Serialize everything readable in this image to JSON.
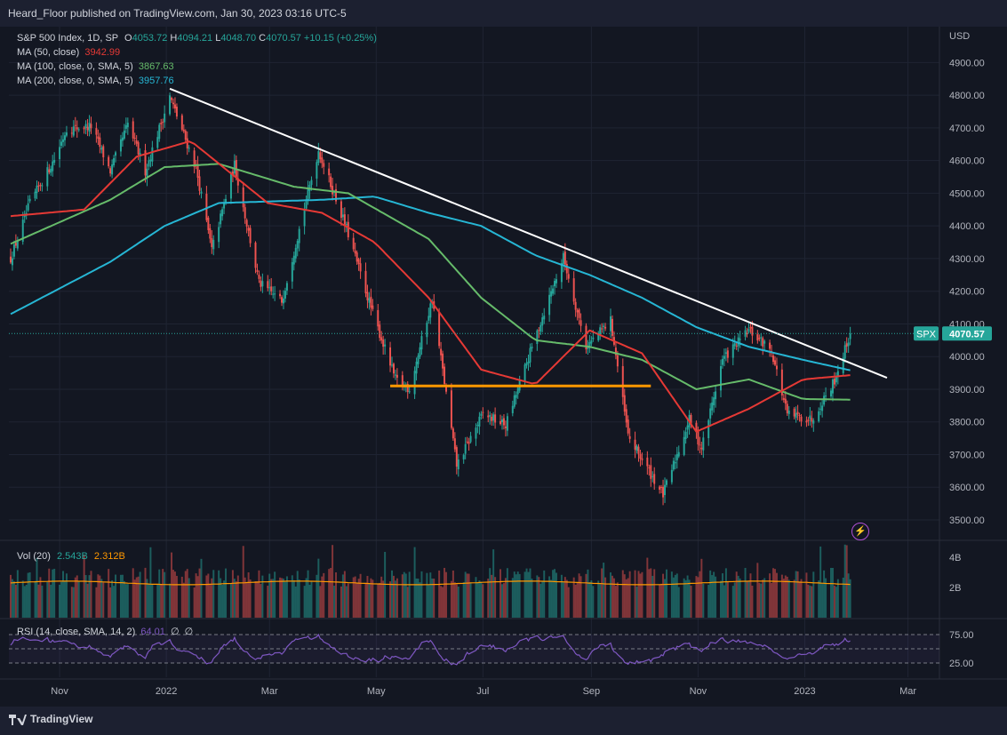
{
  "header": {
    "published": "Heard_Floor published on TradingView.com, Jan 30, 2023 03:16 UTC-5"
  },
  "footer": {
    "brand": "TradingView"
  },
  "legend": {
    "symbol": "S&P 500 Index, 1D, SP",
    "open_k": "O",
    "open": "4053.72",
    "high_k": "H",
    "high": "4094.21",
    "low_k": "L",
    "low": "4048.70",
    "close_k": "C",
    "close": "4070.57",
    "change": "+10.15 (+0.25%)",
    "ma50_label": "MA (50, close)",
    "ma50_value": "3942.99",
    "ma100_label": "MA (100, close, 0, SMA, 5)",
    "ma100_value": "3867.63",
    "ma200_label": "MA (200, close, 0, SMA, 5)",
    "ma200_value": "3957.76"
  },
  "volume_pane": {
    "label": "Vol (20)",
    "value1": "2.543B",
    "value2": "2.312B",
    "ticks": [
      "4B",
      "2B"
    ]
  },
  "rsi_pane": {
    "label": "RSI (14, close, SMA, 14, 2)",
    "value": "64.01",
    "value2": "∅",
    "value3": "∅",
    "ticks": [
      "75.00",
      "25.00"
    ]
  },
  "price_axis": {
    "currency": "USD",
    "last_symbol": "SPX",
    "last_price": "4070.57"
  },
  "colors": {
    "up": "#26a69a",
    "down": "#ef5350",
    "ma50": "#e53935",
    "ma100": "#66bb6a",
    "ma200": "#26b6d4",
    "trendline": "#ffffff",
    "support": "#ff9800",
    "rsi": "#7e57c2"
  },
  "chart_data": {
    "type": "candlestick",
    "y_ticks": [
      3500,
      3600,
      3700,
      3800,
      3900,
      4000,
      4100,
      4200,
      4300,
      4400,
      4500,
      4600,
      4700,
      4800,
      4900
    ],
    "y_tick_labels": [
      "3500.00",
      "3600.00",
      "3700.00",
      "3800.00",
      "3900.00",
      "4000.00",
      "4100.00",
      "4200.00",
      "4300.00",
      "4400.00",
      "4500.00",
      "4600.00",
      "4700.00",
      "4800.00",
      "4900.00"
    ],
    "ylim": [
      3440,
      5010
    ],
    "x_labels": [
      "Nov",
      "2022",
      "Mar",
      "May",
      "Jul",
      "Sep",
      "Nov",
      "2023",
      "Mar"
    ],
    "x_label_dates": [
      "2021-11-01",
      "2022-01-01",
      "2022-03-01",
      "2022-05-01",
      "2022-07-01",
      "2022-09-01",
      "2022-11-01",
      "2023-01-01",
      "2023-03-01"
    ],
    "xlim": [
      "2021-10-03",
      "2023-03-19"
    ],
    "close_anchors": [
      [
        "2021-10-04",
        4300
      ],
      [
        "2021-10-15",
        4470
      ],
      [
        "2021-10-29",
        4605
      ],
      [
        "2021-11-05",
        4697
      ],
      [
        "2021-11-19",
        4705
      ],
      [
        "2021-11-30",
        4567
      ],
      [
        "2021-12-10",
        4712
      ],
      [
        "2021-12-20",
        4568
      ],
      [
        "2022-01-03",
        4796
      ],
      [
        "2022-01-18",
        4577
      ],
      [
        "2022-01-27",
        4326
      ],
      [
        "2022-02-09",
        4587
      ],
      [
        "2022-02-23",
        4225
      ],
      [
        "2022-03-08",
        4170
      ],
      [
        "2022-03-29",
        4631
      ],
      [
        "2022-04-14",
        4392
      ],
      [
        "2022-04-29",
        4132
      ],
      [
        "2022-05-12",
        3930
      ],
      [
        "2022-05-20",
        3901
      ],
      [
        "2022-06-02",
        4176
      ],
      [
        "2022-06-16",
        3667
      ],
      [
        "2022-07-01",
        3825
      ],
      [
        "2022-07-14",
        3790
      ],
      [
        "2022-08-02",
        4091
      ],
      [
        "2022-08-16",
        4305
      ],
      [
        "2022-08-29",
        4030
      ],
      [
        "2022-09-12",
        4110
      ],
      [
        "2022-09-22",
        3757
      ],
      [
        "2022-10-12",
        3577
      ],
      [
        "2022-10-27",
        3808
      ],
      [
        "2022-11-03",
        3720
      ],
      [
        "2022-11-15",
        3991
      ],
      [
        "2022-11-30",
        4080
      ],
      [
        "2022-12-13",
        4019
      ],
      [
        "2022-12-22",
        3822
      ],
      [
        "2023-01-05",
        3808
      ],
      [
        "2023-01-18",
        3928
      ],
      [
        "2023-01-27",
        4070
      ]
    ],
    "ma50_anchors": [
      [
        "2021-10-04",
        4430
      ],
      [
        "2021-11-15",
        4450
      ],
      [
        "2021-12-15",
        4612
      ],
      [
        "2022-01-15",
        4660
      ],
      [
        "2022-02-28",
        4470
      ],
      [
        "2022-03-31",
        4440
      ],
      [
        "2022-04-30",
        4350
      ],
      [
        "2022-05-31",
        4180
      ],
      [
        "2022-06-30",
        3960
      ],
      [
        "2022-07-31",
        3915
      ],
      [
        "2022-08-31",
        4080
      ],
      [
        "2022-09-30",
        4010
      ],
      [
        "2022-10-31",
        3770
      ],
      [
        "2022-11-30",
        3840
      ],
      [
        "2022-12-31",
        3930
      ],
      [
        "2023-01-27",
        3943
      ]
    ],
    "ma100_anchors": [
      [
        "2021-10-04",
        4345
      ],
      [
        "2021-11-30",
        4480
      ],
      [
        "2021-12-31",
        4580
      ],
      [
        "2022-01-31",
        4590
      ],
      [
        "2022-03-15",
        4520
      ],
      [
        "2022-04-15",
        4500
      ],
      [
        "2022-05-31",
        4360
      ],
      [
        "2022-06-30",
        4180
      ],
      [
        "2022-07-31",
        4050
      ],
      [
        "2022-08-31",
        4030
      ],
      [
        "2022-09-30",
        3990
      ],
      [
        "2022-10-31",
        3900
      ],
      [
        "2022-11-30",
        3930
      ],
      [
        "2022-12-31",
        3870
      ],
      [
        "2023-01-27",
        3868
      ]
    ],
    "ma200_anchors": [
      [
        "2021-10-04",
        4130
      ],
      [
        "2021-11-30",
        4290
      ],
      [
        "2021-12-31",
        4400
      ],
      [
        "2022-01-31",
        4470
      ],
      [
        "2022-03-31",
        4480
      ],
      [
        "2022-04-30",
        4490
      ],
      [
        "2022-05-31",
        4440
      ],
      [
        "2022-06-30",
        4400
      ],
      [
        "2022-07-31",
        4310
      ],
      [
        "2022-08-31",
        4250
      ],
      [
        "2022-09-30",
        4180
      ],
      [
        "2022-10-31",
        4090
      ],
      [
        "2022-11-30",
        4030
      ],
      [
        "2022-12-31",
        3990
      ],
      [
        "2023-01-27",
        3958
      ]
    ],
    "trendline": [
      [
        "2022-01-03",
        4820
      ],
      [
        "2023-02-17",
        3935
      ]
    ],
    "support_line": {
      "value": 3910,
      "from": "2022-05-09",
      "to": "2022-10-05"
    },
    "volume_ylim": [
      0,
      5
    ],
    "rsi_ylim": [
      0,
      100
    ],
    "rsi_levels": [
      75,
      50,
      25
    ]
  }
}
